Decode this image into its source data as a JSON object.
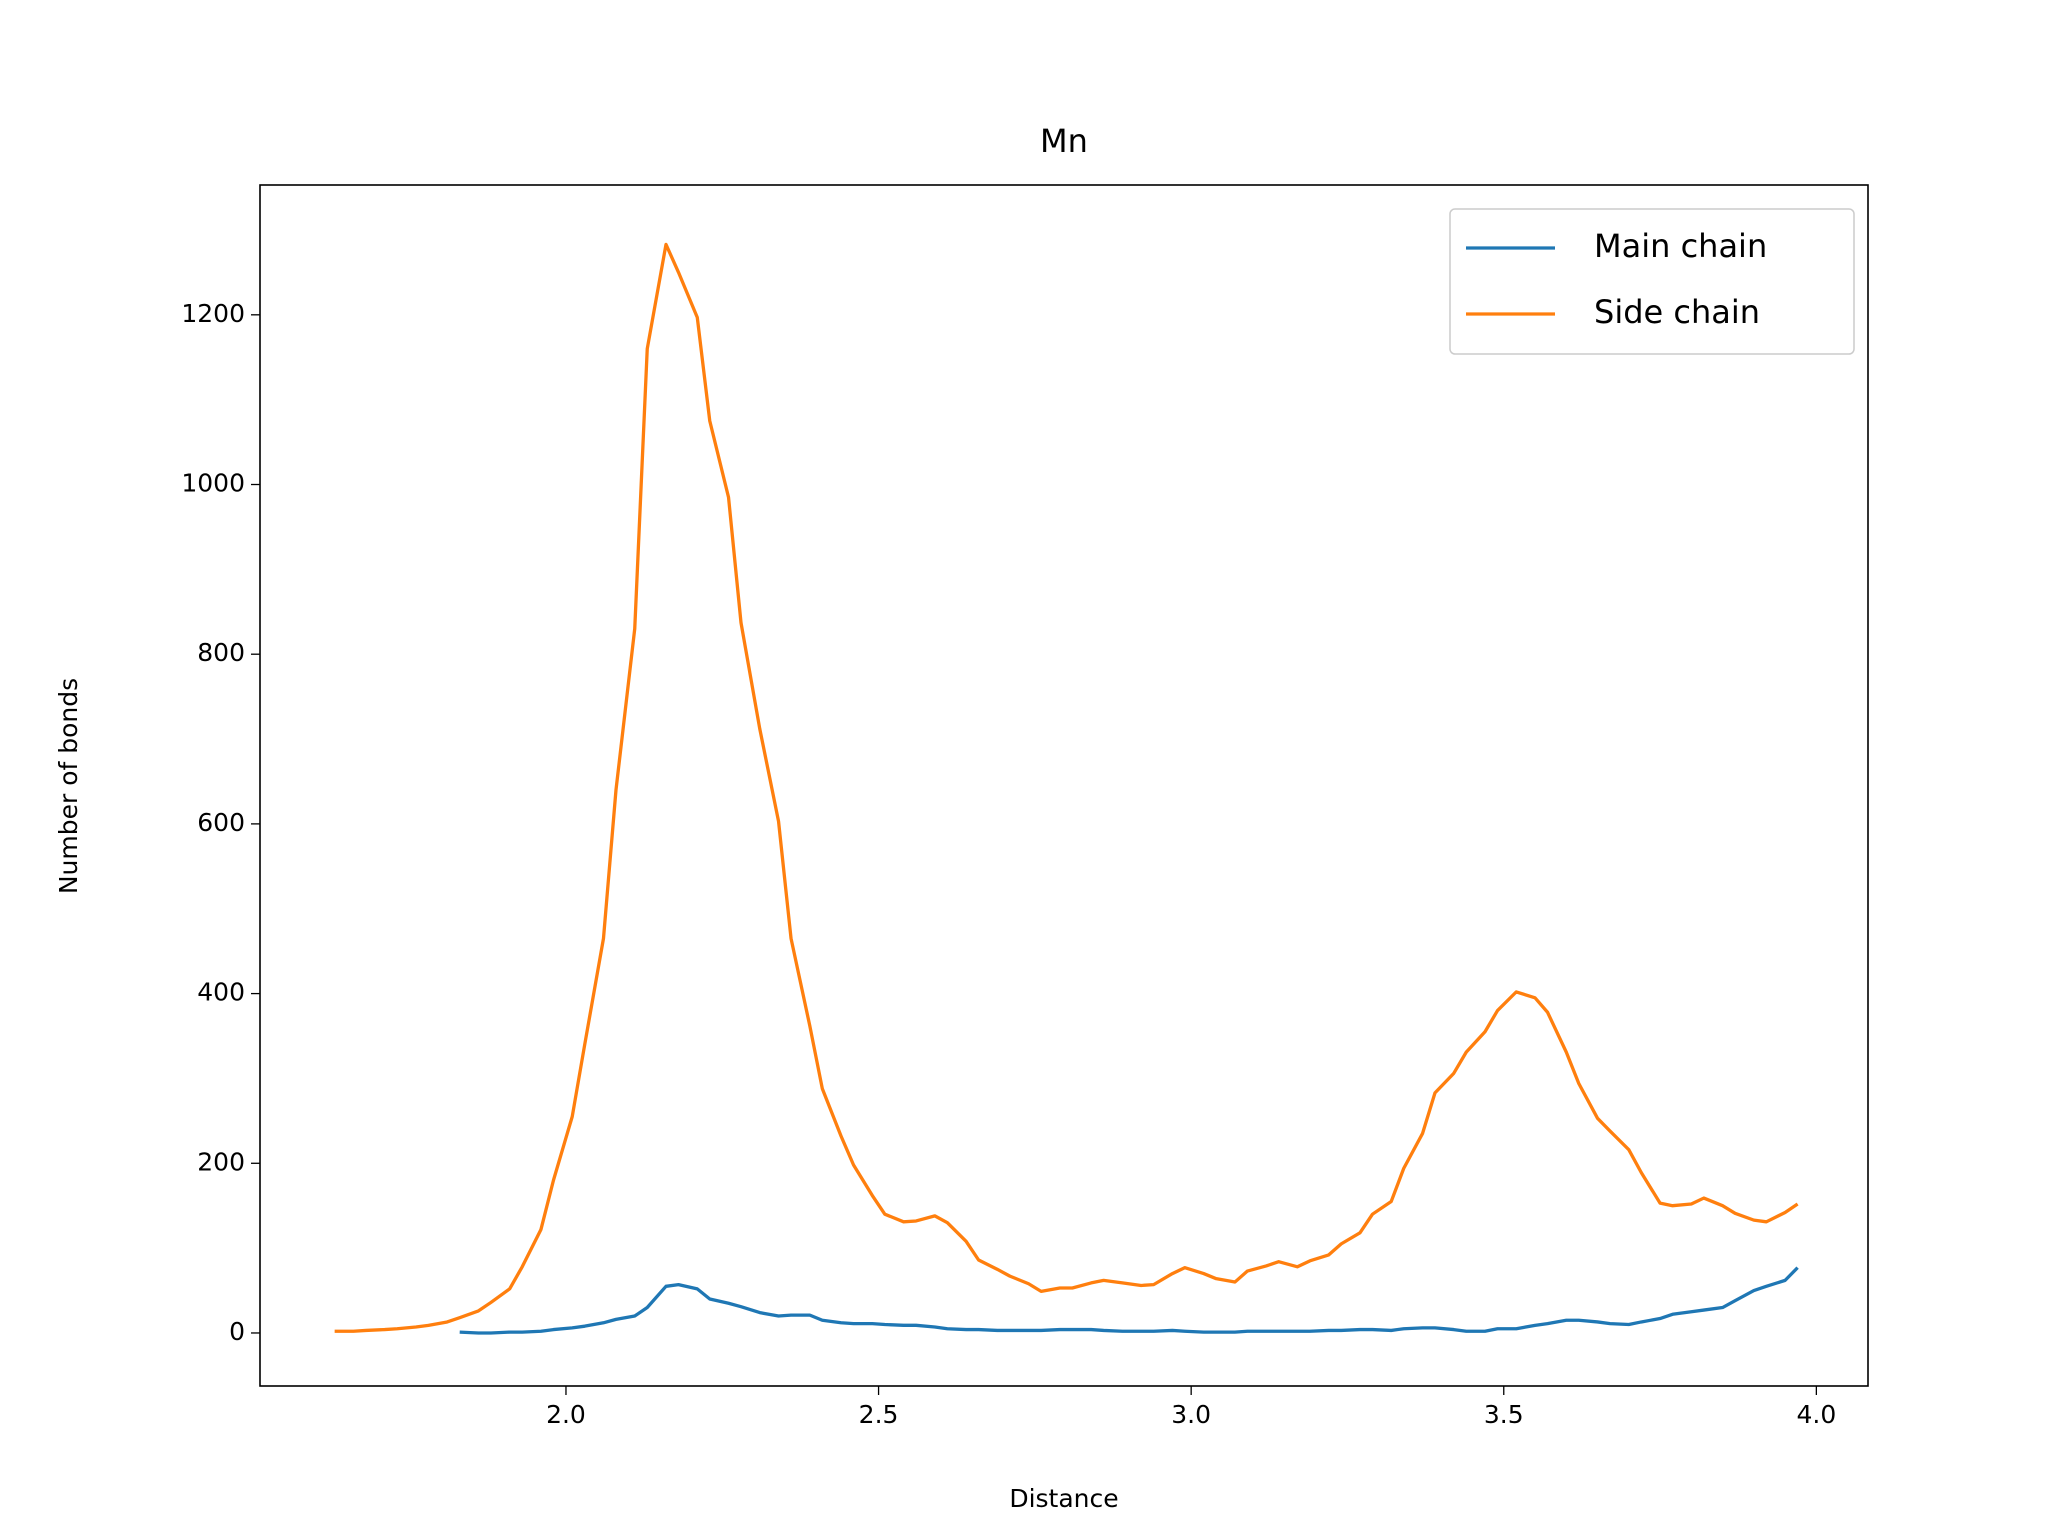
{
  "chart_data": {
    "type": "line",
    "title": "Mn",
    "xlabel": "Distance",
    "ylabel": "Number of bonds",
    "x": [
      1.63,
      1.66,
      1.68,
      1.71,
      1.73,
      1.76,
      1.78,
      1.81,
      1.83,
      1.86,
      1.88,
      1.91,
      1.93,
      1.96,
      1.98,
      2.01,
      2.03,
      2.06,
      2.08,
      2.11,
      2.13,
      2.16,
      2.18,
      2.21,
      2.23,
      2.26,
      2.28,
      2.31,
      2.34,
      2.36,
      2.39,
      2.41,
      2.44,
      2.46,
      2.49,
      2.51,
      2.54,
      2.56,
      2.59,
      2.61,
      2.64,
      2.66,
      2.69,
      2.71,
      2.74,
      2.76,
      2.79,
      2.81,
      2.84,
      2.86,
      2.89,
      2.92,
      2.94,
      2.97,
      2.99,
      3.02,
      3.04,
      3.07,
      3.09,
      3.12,
      3.14,
      3.17,
      3.19,
      3.22,
      3.24,
      3.27,
      3.29,
      3.32,
      3.34,
      3.37,
      3.39,
      3.42,
      3.44,
      3.47,
      3.49,
      3.52,
      3.55,
      3.57,
      3.6,
      3.62,
      3.65,
      3.67,
      3.7,
      3.72,
      3.75,
      3.77,
      3.8,
      3.82,
      3.85,
      3.87,
      3.9,
      3.92,
      3.95,
      3.97
    ],
    "series": [
      {
        "name": "Main chain",
        "color": "#1f77b4",
        "values": [
          null,
          null,
          null,
          null,
          null,
          null,
          null,
          null,
          1,
          0,
          0,
          1,
          1,
          2,
          4,
          6,
          8,
          12,
          16,
          20,
          30,
          55,
          57,
          52,
          40,
          35,
          31,
          24,
          20,
          21,
          21,
          15,
          12,
          11,
          11,
          10,
          9,
          9,
          7,
          5,
          4,
          4,
          3,
          3,
          3,
          3,
          4,
          4,
          4,
          3,
          2,
          2,
          2,
          3,
          2,
          1,
          1,
          1,
          2,
          2,
          2,
          2,
          2,
          3,
          3,
          4,
          4,
          3,
          5,
          6,
          6,
          4,
          2,
          2,
          5,
          5,
          9,
          11,
          15,
          15,
          13,
          11,
          10,
          13,
          17,
          22,
          25,
          27,
          30,
          38,
          50,
          55,
          62,
          77
        ]
      },
      {
        "name": "Side chain",
        "color": "#ff7f0e",
        "values": [
          2,
          2,
          3,
          4,
          5,
          7,
          9,
          13,
          18,
          26,
          36,
          52,
          78,
          122,
          180,
          255,
          340,
          465,
          640,
          830,
          1160,
          1283,
          1250,
          1197,
          1075,
          985,
          837,
          712,
          603,
          465,
          362,
          288,
          232,
          198,
          162,
          140,
          131,
          132,
          138,
          130,
          108,
          86,
          75,
          67,
          58,
          49,
          53,
          53,
          59,
          62,
          59,
          56,
          57,
          70,
          77,
          70,
          64,
          60,
          73,
          79,
          84,
          78,
          85,
          92,
          105,
          118,
          140,
          155,
          194,
          235,
          283,
          306,
          331,
          355,
          380,
          402,
          395,
          378,
          331,
          294,
          253,
          238,
          216,
          189,
          153,
          150,
          152,
          159,
          150,
          141,
          133,
          131,
          142,
          152
        ]
      }
    ],
    "xlim": [
      1.5106,
      4.0826
    ],
    "ylim": [
      -62.5,
      1353
    ],
    "xticks": [
      {
        "value": 2,
        "label": "2.0"
      },
      {
        "value": 2.5,
        "label": "2.5"
      },
      {
        "value": 3,
        "label": "3.0"
      },
      {
        "value": 3.5,
        "label": "3.5"
      },
      {
        "value": 4,
        "label": "4.0"
      }
    ],
    "yticks": [
      0,
      200,
      400,
      600,
      800,
      1000,
      1200
    ],
    "legend": "upper right",
    "grid": false
  }
}
